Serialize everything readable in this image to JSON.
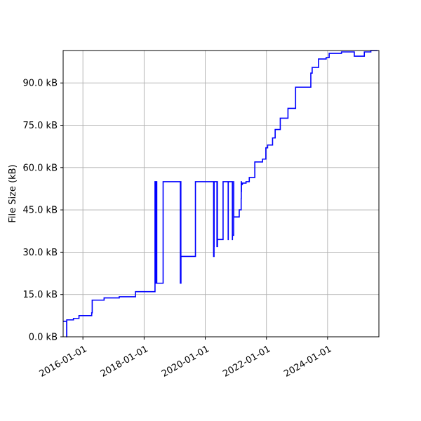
{
  "chart_data": {
    "type": "line",
    "title": "",
    "xlabel": "",
    "ylabel": "File Size (kB)",
    "grid": true,
    "line_color": "#0000ff",
    "xlim": [
      "2015-05-10",
      "2025-09-05"
    ],
    "ylim": [
      0,
      101.5
    ],
    "x_ticks": [
      {
        "date": "2016-01-01",
        "label": "2016-01-01"
      },
      {
        "date": "2018-01-01",
        "label": "2018-01-01"
      },
      {
        "date": "2020-01-01",
        "label": "2020-01-01"
      },
      {
        "date": "2022-01-01",
        "label": "2022-01-01"
      },
      {
        "date": "2024-01-01",
        "label": "2024-01-01"
      }
    ],
    "y_ticks": [
      {
        "value": 0,
        "label": "0.0 kB"
      },
      {
        "value": 15,
        "label": "15.0 kB"
      },
      {
        "value": 30,
        "label": "30.0 kB"
      },
      {
        "value": 45,
        "label": "45.0 kB"
      },
      {
        "value": 60,
        "label": "60.0 kB"
      },
      {
        "value": 75,
        "label": "75.0 kB"
      },
      {
        "value": 90,
        "label": "90.0 kB"
      }
    ],
    "series": [
      {
        "x": [
          "2015-05-10",
          "2015-06-20",
          "2015-06-21",
          "2015-06-22",
          "2015-09-10",
          "2015-11-15",
          "2016-04-15",
          "2016-04-20",
          "2016-04-21",
          "2016-05-01",
          "2016-06-10",
          "2016-09-10",
          "2016-11-10",
          "2017-03-10",
          "2017-04-20",
          "2017-05-20",
          "2017-05-21",
          "2017-09-20",
          "2018-05-10",
          "2018-05-11",
          "2018-05-15",
          "2018-05-16",
          "2018-05-20",
          "2018-05-21",
          "2018-05-26",
          "2018-05-27",
          "2018-06-01",
          "2018-06-02",
          "2018-08-15",
          "2018-08-16",
          "2019-03-10",
          "2019-03-11",
          "2019-03-16",
          "2019-03-17",
          "2019-09-05",
          "2019-09-06",
          "2020-04-10",
          "2020-04-15",
          "2020-04-16",
          "2020-05-20",
          "2020-05-21",
          "2020-05-25",
          "2020-05-26",
          "2020-06-10",
          "2020-08-01",
          "2020-10-01",
          "2020-10-02",
          "2020-11-20",
          "2020-11-21",
          "2020-12-05",
          "2020-12-06",
          "2021-02-10",
          "2021-03-05",
          "2021-03-06",
          "2021-03-07",
          "2021-03-08",
          "2021-03-20",
          "2021-05-01",
          "2021-05-02",
          "2021-06-10",
          "2021-07-10",
          "2021-08-15",
          "2021-11-15",
          "2021-12-25",
          "2022-01-15",
          "2022-03-15",
          "2022-04-15",
          "2022-06-15",
          "2022-09-15",
          "2022-12-15",
          "2023-03-15",
          "2023-06-15",
          "2023-07-01",
          "2023-09-15",
          "2023-12-15",
          "2024-01-20",
          "2024-03-15",
          "2024-06-15",
          "2024-09-15",
          "2024-11-15",
          "2025-01-15",
          "2025-03-15",
          "2025-06-01",
          "2025-08-20"
        ],
        "y": [
          5.5,
          5.5,
          0,
          6,
          6.5,
          7.5,
          8.5,
          8.5,
          13,
          13,
          13,
          13.8,
          13.8,
          14.2,
          14.2,
          14.2,
          14.2,
          16,
          16,
          55,
          19,
          55,
          19,
          55,
          19,
          55,
          19,
          19,
          19,
          55,
          19,
          55,
          19,
          28.5,
          28.5,
          55,
          28.5,
          32,
          55,
          32,
          55,
          32,
          34.5,
          34.5,
          55,
          34.5,
          55,
          34.5,
          36,
          55,
          42.5,
          45,
          49,
          55,
          51.5,
          54,
          54.5,
          54.5,
          55,
          56.5,
          56.5,
          62,
          63,
          67,
          68,
          70.5,
          73.5,
          77.5,
          81,
          88.5,
          88.5,
          93.5,
          95.5,
          98.5,
          99,
          100.5,
          100.5,
          101,
          101,
          99.5,
          99.5,
          101,
          101.5,
          101.5
        ]
      }
    ]
  }
}
